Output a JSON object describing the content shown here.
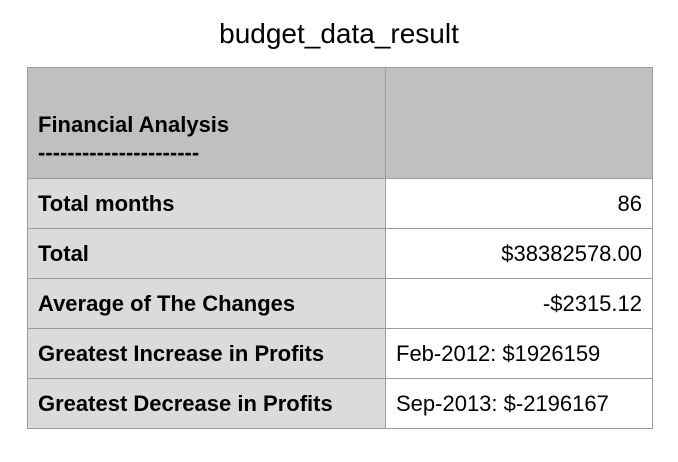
{
  "title": "budget_data_result",
  "header": {
    "heading": "Financial Analysis",
    "separator": "----------------------",
    "right": ""
  },
  "rows": [
    {
      "label": "Total months",
      "value": "86",
      "align": "right"
    },
    {
      "label": "Total",
      "value": "$38382578.00",
      "align": "right"
    },
    {
      "label": "Average of The Changes",
      "value": "-$2315.12",
      "align": "right"
    },
    {
      "label": "Greatest Increase in Profits",
      "value": "Feb-2012: $1926159",
      "align": "left"
    },
    {
      "label": "Greatest Decrease in Profits",
      "value": "Sep-2013: $-2196167",
      "align": "left"
    }
  ]
}
